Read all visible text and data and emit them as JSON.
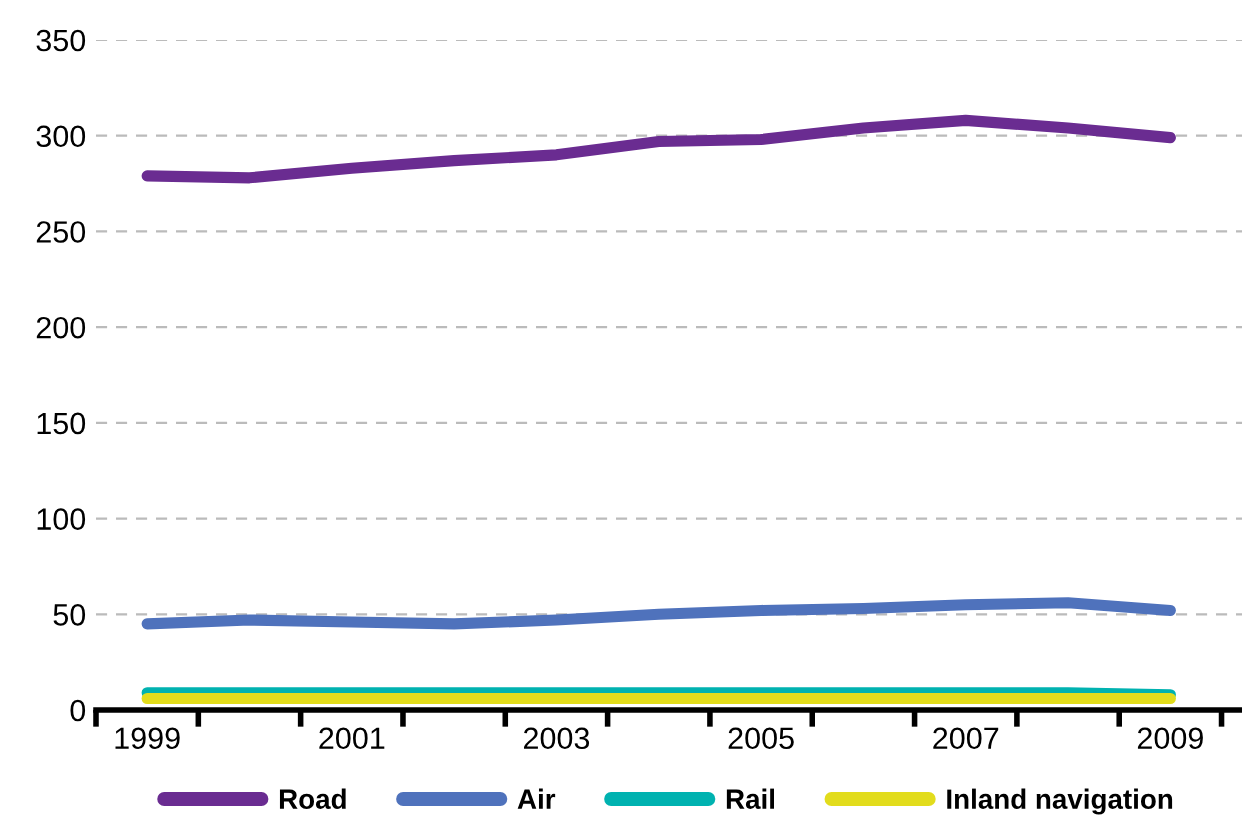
{
  "chart_data": {
    "type": "line",
    "categories": [
      "1999",
      null,
      "2001",
      null,
      "2003",
      null,
      "2005",
      null,
      "2007",
      null,
      "2009"
    ],
    "series": [
      {
        "name": "Road",
        "color": "#6a2c91",
        "values": [
          279,
          278,
          283,
          287,
          290,
          297,
          298,
          304,
          308,
          304,
          299
        ]
      },
      {
        "name": "Air",
        "color": "#4f72bc",
        "values": [
          45,
          47,
          46,
          45,
          47,
          50,
          52,
          53,
          55,
          56,
          52
        ]
      },
      {
        "name": "Rail",
        "color": "#00b2b0",
        "values": [
          9,
          9,
          9,
          9,
          9,
          9,
          9,
          9,
          9,
          9,
          8
        ]
      },
      {
        "name": "Inland navigation",
        "color": "#e2dc1c",
        "values": [
          6,
          6,
          6,
          6,
          6,
          6,
          6,
          6,
          6,
          6,
          6
        ]
      }
    ],
    "ylim": [
      0,
      350
    ],
    "yticks": [
      0,
      50,
      100,
      150,
      200,
      250,
      300,
      350
    ],
    "grid": "y",
    "legend": "bottom",
    "marker": "none",
    "line_style": "solid"
  }
}
